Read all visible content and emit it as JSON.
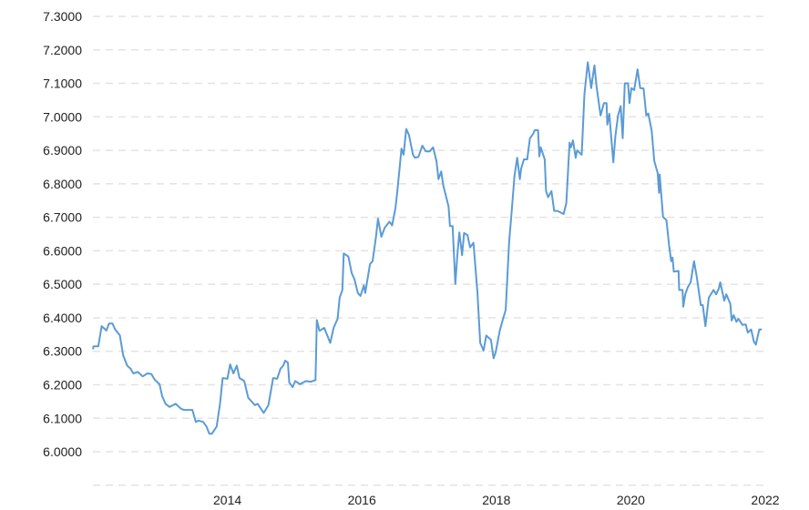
{
  "chart_data": {
    "type": "line",
    "title": "",
    "xlabel": "",
    "ylabel": "",
    "xlim": [
      2012.0,
      2022.05
    ],
    "ylim": [
      5.9,
      7.3
    ],
    "grid": "horizontal-dashed",
    "legend": "none",
    "colors": {
      "line": "#5b9bd5",
      "grid": "#e3e3e3",
      "text": "#222222"
    },
    "y_ticks": [
      6.0,
      6.1,
      6.2,
      6.3,
      6.4,
      6.5,
      6.6,
      6.7,
      6.8,
      6.9,
      7.0,
      7.1,
      7.2,
      7.3
    ],
    "y_tick_labels": [
      "6.0000",
      "6.1000",
      "6.2000",
      "6.3000",
      "6.4000",
      "6.5000",
      "6.6000",
      "6.7000",
      "6.8000",
      "6.9000",
      "7.0000",
      "7.1000",
      "7.2000",
      "7.3000"
    ],
    "x_ticks": [
      2014,
      2016,
      2018,
      2020,
      2022
    ],
    "x_tick_labels": [
      "2014",
      "2016",
      "2018",
      "2020",
      "2022"
    ],
    "series": [
      {
        "x": [
          2012.0,
          2012.01,
          2012.08,
          2012.13,
          2012.2,
          2012.24,
          2012.29,
          2012.33,
          2012.4,
          2012.45,
          2012.51,
          2012.56,
          2012.6,
          2012.67,
          2012.74,
          2012.81,
          2012.87,
          2012.92,
          2012.99,
          2013.03,
          2013.08,
          2013.14,
          2013.23,
          2013.3,
          2013.35,
          2013.48,
          2013.53,
          2013.57,
          2013.64,
          2013.69,
          2013.73,
          2013.77,
          2013.84,
          2013.89,
          2013.93,
          2014.0,
          2014.04,
          2014.09,
          2014.14,
          2014.18,
          2014.25,
          2014.31,
          2014.41,
          2014.45,
          2014.54,
          2014.61,
          2014.68,
          2014.74,
          2014.79,
          2014.83,
          2014.86,
          2014.9,
          2014.92,
          2014.97,
          2015.01,
          2015.08,
          2015.17,
          2015.24,
          2015.31,
          2015.33,
          2015.37,
          2015.44,
          2015.53,
          2015.58,
          2015.64,
          2015.67,
          2015.71,
          2015.73,
          2015.8,
          2015.85,
          2015.89,
          2015.94,
          2015.98,
          2016.03,
          2016.05,
          2016.12,
          2016.16,
          2016.21,
          2016.24,
          2016.29,
          2016.34,
          2016.41,
          2016.45,
          2016.5,
          2016.53,
          2016.59,
          2016.62,
          2016.66,
          2016.7,
          2016.76,
          2016.79,
          2016.84,
          2016.9,
          2016.95,
          2017.01,
          2017.06,
          2017.11,
          2017.14,
          2017.18,
          2017.21,
          2017.29,
          2017.31,
          2017.35,
          2017.39,
          2017.42,
          2017.45,
          2017.49,
          2017.52,
          2017.57,
          2017.61,
          2017.66,
          2017.72,
          2017.76,
          2017.81,
          2017.85,
          2017.92,
          2017.96,
          2017.99,
          2018.05,
          2018.1,
          2018.14,
          2018.19,
          2018.23,
          2018.27,
          2018.31,
          2018.35,
          2018.37,
          2018.41,
          2018.46,
          2018.5,
          2018.55,
          2018.57,
          2018.62,
          2018.64,
          2018.66,
          2018.72,
          2018.74,
          2018.77,
          2018.82,
          2018.86,
          2018.91,
          2019.0,
          2019.04,
          2019.09,
          2019.11,
          2019.14,
          2019.18,
          2019.2,
          2019.27,
          2019.31,
          2019.36,
          2019.41,
          2019.46,
          2019.49,
          2019.55,
          2019.6,
          2019.64,
          2019.65,
          2019.68,
          2019.74,
          2019.77,
          2019.81,
          2019.85,
          2019.88,
          2019.91,
          2019.96,
          2019.98,
          2020.01,
          2020.05,
          2020.1,
          2020.14,
          2020.19,
          2020.23,
          2020.26,
          2020.31,
          2020.35,
          2020.4,
          2020.42,
          2020.43,
          2020.48,
          2020.53,
          2020.57,
          2020.6,
          2020.62,
          2020.64,
          2020.71,
          2020.72,
          2020.77,
          2020.78,
          2020.81,
          2020.85,
          2020.89,
          2020.94,
          2020.98,
          2021.04,
          2021.07,
          2021.11,
          2021.16,
          2021.23,
          2021.27,
          2021.31,
          2021.33,
          2021.39,
          2021.42,
          2021.48,
          2021.5,
          2021.53,
          2021.57,
          2021.6,
          2021.66,
          2021.71,
          2021.74,
          2021.79,
          2021.83,
          2021.86,
          2021.91,
          2021.95
        ],
        "values": [
          6.306,
          6.315,
          6.315,
          6.375,
          6.362,
          6.383,
          6.383,
          6.365,
          6.348,
          6.288,
          6.257,
          6.248,
          6.234,
          6.238,
          6.225,
          6.234,
          6.232,
          6.215,
          6.202,
          6.166,
          6.143,
          6.134,
          6.143,
          6.13,
          6.125,
          6.125,
          6.089,
          6.093,
          6.089,
          6.075,
          6.054,
          6.054,
          6.075,
          6.143,
          6.22,
          6.218,
          6.261,
          6.234,
          6.257,
          6.22,
          6.211,
          6.161,
          6.139,
          6.143,
          6.116,
          6.139,
          6.22,
          6.218,
          6.248,
          6.257,
          6.272,
          6.266,
          6.207,
          6.193,
          6.211,
          6.202,
          6.211,
          6.209,
          6.214,
          6.393,
          6.361,
          6.37,
          6.325,
          6.37,
          6.397,
          6.46,
          6.483,
          6.592,
          6.583,
          6.533,
          6.515,
          6.474,
          6.465,
          6.497,
          6.474,
          6.56,
          6.569,
          6.642,
          6.696,
          6.642,
          6.669,
          6.687,
          6.676,
          6.728,
          6.782,
          6.905,
          6.887,
          6.964,
          6.946,
          6.887,
          6.878,
          6.88,
          6.914,
          6.897,
          6.897,
          6.909,
          6.868,
          6.814,
          6.837,
          6.796,
          6.732,
          6.674,
          6.674,
          6.501,
          6.587,
          6.655,
          6.587,
          6.653,
          6.647,
          6.61,
          6.624,
          6.474,
          6.325,
          6.302,
          6.347,
          6.334,
          6.279,
          6.297,
          6.361,
          6.397,
          6.424,
          6.624,
          6.723,
          6.823,
          6.878,
          6.814,
          6.846,
          6.873,
          6.873,
          6.936,
          6.95,
          6.96,
          6.96,
          6.882,
          6.909,
          6.873,
          6.778,
          6.76,
          6.778,
          6.719,
          6.719,
          6.71,
          6.742,
          6.923,
          6.909,
          6.93,
          6.878,
          6.9,
          6.887,
          7.068,
          7.163,
          7.086,
          7.154,
          7.091,
          7.004,
          7.041,
          7.041,
          6.977,
          7.009,
          6.864,
          6.941,
          7.004,
          7.032,
          6.936,
          7.1,
          7.1,
          7.041,
          7.086,
          7.08,
          7.142,
          7.086,
          7.085,
          7.004,
          7.01,
          6.959,
          6.868,
          6.832,
          6.773,
          6.828,
          6.701,
          6.692,
          6.615,
          6.569,
          6.58,
          6.538,
          6.54,
          6.483,
          6.483,
          6.433,
          6.47,
          6.492,
          6.506,
          6.569,
          6.524,
          6.438,
          6.438,
          6.375,
          6.46,
          6.483,
          6.47,
          6.488,
          6.506,
          6.451,
          6.47,
          6.442,
          6.392,
          6.408,
          6.388,
          6.397,
          6.379,
          6.38,
          6.356,
          6.365,
          6.329,
          6.32,
          6.365,
          6.365
        ]
      }
    ]
  }
}
